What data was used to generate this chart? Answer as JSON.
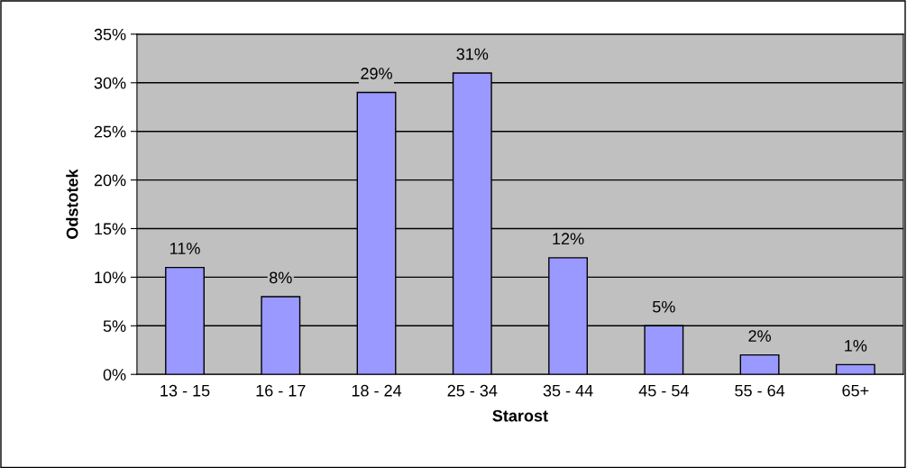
{
  "chart_data": {
    "type": "bar",
    "xlabel": "Starost",
    "ylabel": "Odstotek",
    "categories": [
      "13 - 15",
      "16 - 17",
      "18 - 24",
      "25 - 34",
      "35 - 44",
      "45 - 54",
      "55 - 64",
      "65+"
    ],
    "values": [
      11,
      8,
      29,
      31,
      12,
      5,
      2,
      1
    ],
    "value_labels": [
      "11%",
      "8%",
      "29%",
      "31%",
      "12%",
      "5%",
      "2%",
      "1%"
    ],
    "color": "#9999ff",
    "ylim": [
      0,
      35
    ],
    "yticks": [
      {
        "value": 0,
        "label": "0%"
      },
      {
        "value": 5,
        "label": "5%"
      },
      {
        "value": 10,
        "label": "10%"
      },
      {
        "value": 15,
        "label": "15%"
      },
      {
        "value": 20,
        "label": "20%"
      },
      {
        "value": 25,
        "label": "25%"
      },
      {
        "value": 30,
        "label": "30%"
      },
      {
        "value": 35,
        "label": "35%"
      }
    ],
    "grid": "y"
  }
}
